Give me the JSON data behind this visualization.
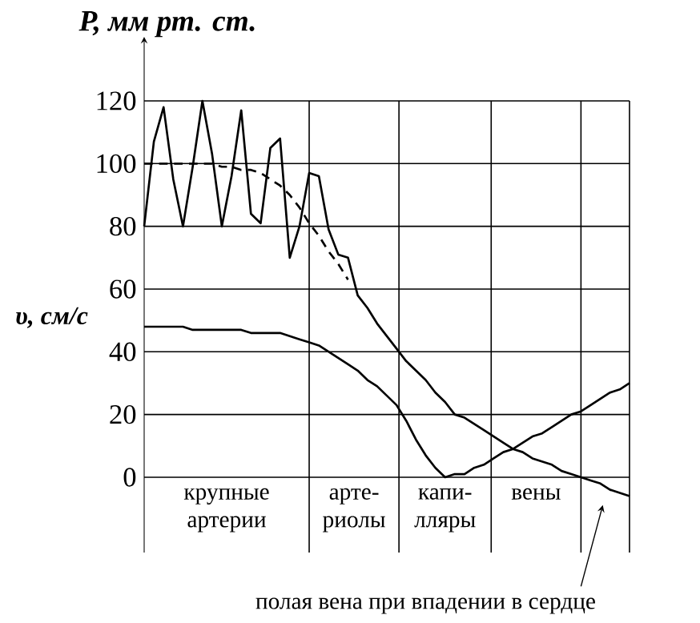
{
  "chart_data": {
    "type": "line",
    "ylabel": "P, мм рт. ст.",
    "categories": [
      null,
      null,
      null,
      null,
      null,
      null,
      null,
      null,
      null,
      null,
      null,
      null,
      null,
      null,
      null,
      null,
      null,
      null,
      null,
      null,
      null,
      null,
      null,
      null,
      null,
      null,
      null,
      null,
      null,
      null,
      null,
      null,
      null,
      null,
      null,
      null,
      null,
      null,
      null,
      null,
      null,
      null,
      null,
      null,
      null,
      null,
      null,
      null,
      null,
      null,
      null
    ],
    "ylim": [
      -24,
      120
    ],
    "yticks": [
      0,
      20,
      40,
      60,
      80,
      100,
      120
    ],
    "tick_labels": "y",
    "grid": "y",
    "marker": "none",
    "series": [
      {
        "color": "#000000",
        "line_style": "solid",
        "values": [
          80,
          107,
          118,
          95,
          80,
          99,
          120,
          103,
          80,
          96,
          117,
          84,
          81,
          105,
          108,
          70,
          80,
          97,
          96,
          79,
          71,
          70,
          58,
          54,
          49,
          45,
          41,
          37,
          34,
          31,
          27,
          24,
          20,
          19,
          17,
          15,
          13,
          11,
          9,
          8,
          6,
          5,
          4,
          2,
          1,
          0,
          -1,
          -2,
          -4,
          -5,
          -6
        ]
      },
      {
        "color": "#000000",
        "line_style": "dashed",
        "values": [
          100,
          100,
          100,
          100,
          100,
          100,
          100,
          100,
          99,
          99,
          98,
          98,
          97,
          95,
          93,
          90,
          86,
          81,
          77,
          72,
          68,
          63,
          null,
          null,
          null,
          null,
          null,
          null,
          null,
          null,
          null,
          null,
          null,
          null,
          null,
          null,
          null,
          null,
          null,
          null,
          null,
          null,
          null,
          null,
          null,
          null,
          null,
          null,
          null,
          null,
          null
        ]
      },
      {
        "color": "#000000",
        "line_style": "solid",
        "values": [
          48,
          48,
          48,
          48,
          48,
          47,
          47,
          47,
          47,
          47,
          47,
          46,
          46,
          46,
          46,
          45,
          44,
          43,
          42,
          40,
          38,
          36,
          34,
          31,
          29,
          26,
          23,
          18,
          12,
          7,
          3,
          0,
          1,
          1,
          3,
          4,
          6,
          8,
          9,
          11,
          13,
          14,
          16,
          18,
          20,
          21,
          23,
          25,
          27,
          28,
          30
        ]
      }
    ],
    "annotations": [
      "крупные артерии",
      "арте-риолы",
      "капи-лляры",
      "вены",
      "полая вена при впадении в сердце",
      "υ, см/с"
    ]
  }
}
